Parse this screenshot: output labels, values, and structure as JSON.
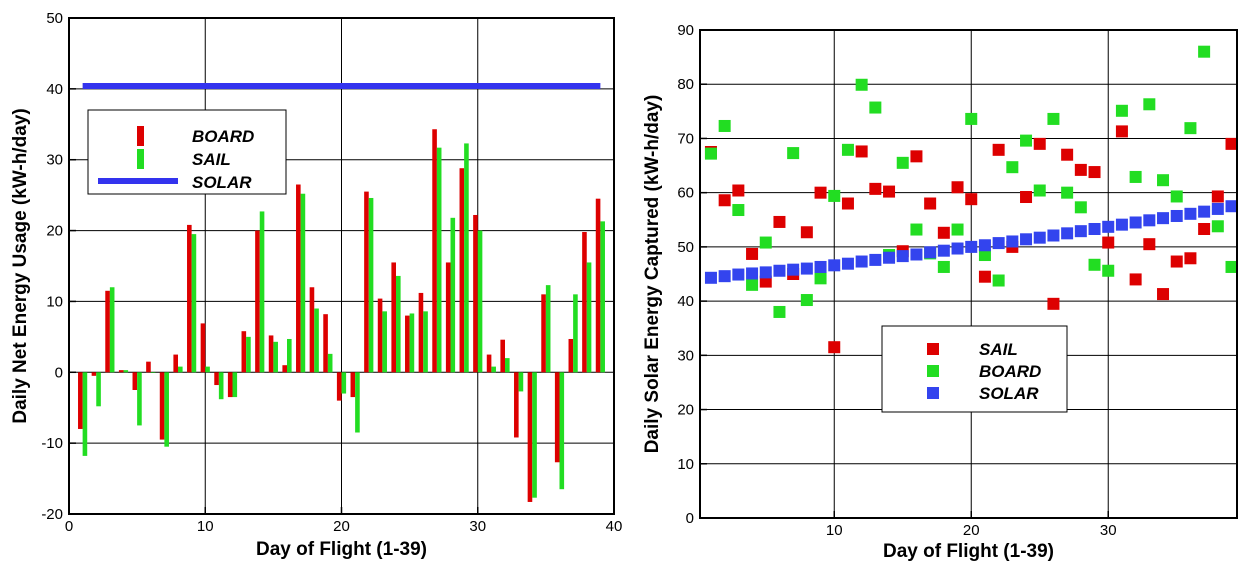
{
  "chart_data": [
    {
      "type": "bar",
      "xlabel": "Day of Flight (1-39)",
      "ylabel": "Daily Net Energy Usage (kW-h/day)",
      "xlim": [
        0,
        40
      ],
      "ylim": [
        -20,
        50
      ],
      "xticks": [
        "0",
        "10",
        "20",
        "30",
        "40"
      ],
      "yticks": [
        "-20",
        "-10",
        "0",
        "10",
        "20",
        "30",
        "40",
        "50"
      ],
      "grid": true,
      "legend_position": "upper-left",
      "legend": [
        "BOARD",
        "SAIL",
        "SOLAR"
      ],
      "x": [
        1,
        2,
        3,
        4,
        5,
        6,
        7,
        8,
        9,
        10,
        11,
        12,
        13,
        14,
        15,
        16,
        17,
        18,
        19,
        20,
        21,
        22,
        23,
        24,
        25,
        26,
        27,
        28,
        29,
        30,
        31,
        32,
        33,
        34,
        35,
        36,
        37,
        38,
        39
      ],
      "series": [
        {
          "name": "BOARD",
          "color": "#dd0000",
          "values": [
            -8,
            -0.5,
            11.5,
            0.3,
            -2.5,
            1.5,
            -9.5,
            2.5,
            20.8,
            6.9,
            -1.8,
            -3.5,
            5.8,
            20,
            5.2,
            1,
            26.5,
            12,
            8.2,
            -4,
            -3.5,
            25.5,
            10.4,
            15.5,
            8.0,
            11.2,
            34.3,
            15.5,
            28.8,
            22.2,
            2.5,
            4.6,
            -9.2,
            -18.3,
            11,
            -12.7,
            4.7,
            19.8,
            24.5
          ]
        },
        {
          "name": "SAIL",
          "color": "#22dd22",
          "values": [
            -11.8,
            -4.8,
            12.0,
            0.3,
            -7.5,
            0,
            -10.5,
            0.8,
            19.5,
            0.8,
            -3.8,
            -3.5,
            5.0,
            22.7,
            4.3,
            4.7,
            25.2,
            9.0,
            2.6,
            -3.0,
            -8.5,
            24.6,
            8.6,
            13.6,
            8.3,
            8.6,
            31.7,
            21.8,
            32.3,
            20.0,
            0.8,
            2.0,
            -2.7,
            -17.7,
            12.3,
            -16.5,
            11.0,
            15.5,
            21.3
          ]
        },
        {
          "name": "SOLAR",
          "color": "#3333ee",
          "type": "line",
          "x": [
            1,
            39
          ],
          "values": [
            40.4,
            40.4
          ]
        }
      ]
    },
    {
      "type": "scatter",
      "xlabel": "Day of Flight (1-39)",
      "ylabel": "Daily Solar Energy Captured (kW-h/day)",
      "xlim": [
        0.2,
        39.4
      ],
      "ylim": [
        0,
        90
      ],
      "xticks": [
        "10",
        "20",
        "30"
      ],
      "yticks": [
        "0",
        "10",
        "20",
        "30",
        "40",
        "50",
        "60",
        "70",
        "80",
        "90"
      ],
      "grid": true,
      "legend_position": "lower-center",
      "legend": [
        "SAIL",
        "BOARD",
        "SOLAR"
      ],
      "x": [
        1,
        2,
        3,
        4,
        5,
        6,
        7,
        8,
        9,
        10,
        11,
        12,
        13,
        14,
        15,
        16,
        17,
        18,
        19,
        20,
        21,
        22,
        23,
        24,
        25,
        26,
        27,
        28,
        29,
        30,
        31,
        32,
        33,
        34,
        35,
        36,
        37,
        38,
        39
      ],
      "series": [
        {
          "name": "SAIL",
          "color": "#dd0000",
          "values": [
            67.5,
            58.6,
            60.4,
            48.7,
            43.6,
            54.6,
            45.0,
            52.7,
            60.0,
            31.5,
            58.0,
            67.6,
            60.7,
            60.2,
            49.2,
            66.7,
            58.0,
            52.6,
            61.0,
            58.8,
            44.5,
            67.9,
            50.0,
            59.2,
            69.0,
            39.5,
            67.0,
            64.2,
            63.8,
            50.8,
            71.3,
            44.0,
            50.5,
            41.3,
            47.3,
            47.9,
            53.3,
            59.3,
            69.0
          ]
        },
        {
          "name": "BOARD",
          "color": "#22dd22",
          "values": [
            67.2,
            72.3,
            56.8,
            43.0,
            50.8,
            38.0,
            67.3,
            40.2,
            44.2,
            59.4,
            67.9,
            79.9,
            75.7,
            48.5,
            65.5,
            53.2,
            48.8,
            46.3,
            53.2,
            73.6,
            48.5,
            43.8,
            64.7,
            69.6,
            60.4,
            73.6,
            60.0,
            57.3,
            46.7,
            45.6,
            75.1,
            62.9,
            76.3,
            62.3,
            59.3,
            71.9,
            86.0,
            53.8,
            46.3
          ]
        },
        {
          "name": "SOLAR",
          "color": "#3344ee",
          "values": [
            44.3,
            44.6,
            44.9,
            45.1,
            45.3,
            45.6,
            45.8,
            46.0,
            46.3,
            46.6,
            46.9,
            47.3,
            47.6,
            48.0,
            48.3,
            48.6,
            49.0,
            49.3,
            49.7,
            50.0,
            50.3,
            50.7,
            51.0,
            51.4,
            51.7,
            52.1,
            52.5,
            52.9,
            53.3,
            53.7,
            54.1,
            54.5,
            54.9,
            55.3,
            55.7,
            56.1,
            56.5,
            57.0,
            57.5
          ]
        }
      ]
    }
  ]
}
